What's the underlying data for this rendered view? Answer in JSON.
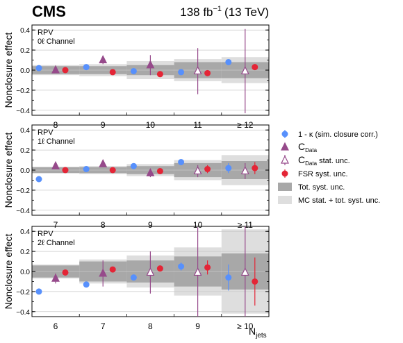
{
  "header": {
    "experiment": "CMS",
    "lumi_value": "138 fb",
    "lumi_exp": "−1",
    "lumi_energy": "(13 TeV)"
  },
  "legend": [
    {
      "key": "kappa",
      "text": "1 - κ (sim. closure corr.)",
      "marker": "circle",
      "color": "#5790fc"
    },
    {
      "key": "cdata",
      "text_main": "C",
      "text_sub": "Data",
      "marker": "triangle",
      "color": "#964a8b"
    },
    {
      "key": "cdata_stat",
      "text_main": "C",
      "text_sub": "Data",
      "text_after": " stat. unc.",
      "marker": "open-triangle",
      "color": "#964a8b"
    },
    {
      "key": "fsr",
      "text": "FSR syst. unc.",
      "marker": "circle",
      "color": "#e42536"
    },
    {
      "key": "tot",
      "text": "Tot. syst. unc.",
      "marker": "box",
      "color": "#a8a8a8"
    },
    {
      "key": "mc",
      "text": "MC stat. + tot. syst. unc.",
      "marker": "box",
      "color": "#dedede"
    }
  ],
  "chart_data": [
    {
      "type": "scatter",
      "annotation": [
        "RPV",
        "0ℓ Channel"
      ],
      "ylabel": "Nonclosure effect",
      "ylim": [
        -0.45,
        0.45
      ],
      "yticks": [
        "0.4",
        "0.2",
        "0.0",
        "−0.2",
        "−0.4"
      ],
      "categories": [
        "8",
        "9",
        "10",
        "11",
        "≥ 12"
      ],
      "tot_syst": [
        0.04,
        0.04,
        0.05,
        0.08,
        0.08
      ],
      "mc_tot": [
        0.05,
        0.06,
        0.09,
        0.11,
        0.13
      ],
      "series": [
        {
          "key": "kappa",
          "values": [
            0.02,
            0.03,
            -0.01,
            -0.02,
            0.08
          ],
          "err": [
            0.0,
            0.0,
            0.0,
            0.0,
            0.0
          ]
        },
        {
          "key": "cdata",
          "values": [
            0.0,
            0.1,
            0.05,
            -0.01,
            -0.01
          ],
          "err": [
            0.01,
            0.04,
            0.1,
            0.23,
            0.42
          ]
        },
        {
          "key": "fsr",
          "values": [
            0.0,
            -0.02,
            -0.04,
            -0.03,
            0.03
          ],
          "err": [
            0.0,
            0.0,
            0.0,
            0.02,
            0.03
          ]
        }
      ],
      "open_from": 3
    },
    {
      "type": "scatter",
      "annotation": [
        "RPV",
        "1ℓ Channel"
      ],
      "ylabel": "Nonclosure effect",
      "ylim": [
        -0.45,
        0.45
      ],
      "yticks": [
        "0.4",
        "0.2",
        "0.0",
        "−0.2",
        "−0.4"
      ],
      "categories": [
        "7",
        "8",
        "9",
        "10",
        "≥ 11"
      ],
      "tot_syst": [
        0.03,
        0.03,
        0.04,
        0.07,
        0.09
      ],
      "mc_tot": [
        0.03,
        0.04,
        0.06,
        0.1,
        0.15
      ],
      "series": [
        {
          "key": "kappa",
          "values": [
            -0.09,
            0.01,
            0.04,
            0.08,
            0.02
          ],
          "err": [
            0.0,
            0.0,
            0.0,
            0.0,
            0.05
          ]
        },
        {
          "key": "cdata",
          "values": [
            0.04,
            0.06,
            -0.03,
            -0.01,
            -0.01
          ],
          "err": [
            0.01,
            0.02,
            0.04,
            0.06,
            0.08
          ]
        },
        {
          "key": "fsr",
          "values": [
            0.0,
            0.0,
            -0.01,
            0.01,
            0.02
          ],
          "err": [
            0.0,
            0.0,
            0.0,
            0.04,
            0.06
          ]
        }
      ],
      "open_from": 3
    },
    {
      "type": "scatter",
      "annotation": [
        "RPV",
        "2ℓ Channel"
      ],
      "ylabel": "Nonclosure effect",
      "ylim": [
        -0.45,
        0.45
      ],
      "yticks": [
        "0.4",
        "0.2",
        "0.0",
        "−0.2",
        "−0.4"
      ],
      "categories": [
        "6",
        "7",
        "8",
        "9",
        "≥ 10"
      ],
      "xlabel_main": "N",
      "xlabel_sub": "jets",
      "tot_syst": [
        0.06,
        0.1,
        0.11,
        0.15,
        0.18
      ],
      "mc_tot": [
        0.07,
        0.12,
        0.16,
        0.24,
        0.42
      ],
      "series": [
        {
          "key": "kappa",
          "values": [
            -0.2,
            -0.13,
            -0.06,
            0.05,
            -0.06
          ],
          "err": [
            0.0,
            0.0,
            0.02,
            0.04,
            0.13
          ]
        },
        {
          "key": "cdata",
          "values": [
            -0.07,
            -0.02,
            -0.01,
            -0.01,
            -0.01
          ],
          "err": [
            0.05,
            0.13,
            0.21,
            0.45,
            0.5
          ]
        },
        {
          "key": "fsr",
          "values": [
            -0.01,
            0.02,
            0.03,
            0.04,
            -0.1
          ],
          "err": [
            0.0,
            0.0,
            0.0,
            0.07,
            0.24
          ]
        }
      ],
      "open_from": 2
    }
  ]
}
